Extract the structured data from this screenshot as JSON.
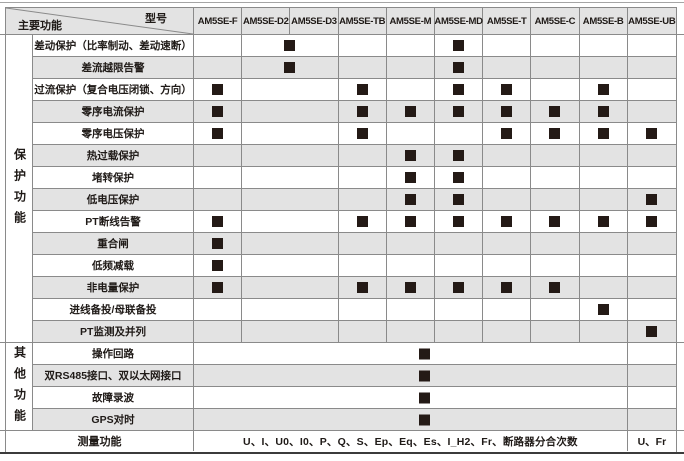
{
  "table": {
    "corner": {
      "model_label": "型号",
      "function_label": "主要功能"
    },
    "columns": [
      "AM5SE-F",
      "AM5SE-D2",
      "AM5SE-D3",
      "AM5SE-TB",
      "AM5SE-M",
      "AM5SE-MD",
      "AM5SE-T",
      "AM5SE-C",
      "AM5SE-B",
      "AM5SE-UB"
    ],
    "sections": [
      {
        "label": "保护功能",
        "rows": [
          {
            "label": "差动保护（比率制动、差动速断）",
            "marks": [
              "D2D3",
              "MD"
            ]
          },
          {
            "label": "差流越限告警",
            "marks": [
              "D2D3",
              "MD"
            ]
          },
          {
            "label": "过流保护（复合电压闭锁、方向）",
            "marks": [
              "F",
              "TB",
              "MD",
              "T",
              "B"
            ]
          },
          {
            "label": "零序电流保护",
            "marks": [
              "F",
              "TB",
              "M",
              "MD",
              "T",
              "C",
              "B"
            ]
          },
          {
            "label": "零序电压保护",
            "marks": [
              "F",
              "TB",
              "T",
              "C",
              "B",
              "UB"
            ]
          },
          {
            "label": "热过载保护",
            "marks": [
              "M",
              "MD"
            ]
          },
          {
            "label": "堵转保护",
            "marks": [
              "M",
              "MD"
            ]
          },
          {
            "label": "低电压保护",
            "marks": [
              "M",
              "MD",
              "UB"
            ]
          },
          {
            "label": "PT断线告警",
            "marks": [
              "F",
              "TB",
              "M",
              "MD",
              "T",
              "C",
              "B",
              "UB"
            ]
          },
          {
            "label": "重合闸",
            "marks": [
              "F"
            ]
          },
          {
            "label": "低频减载",
            "marks": [
              "F"
            ]
          },
          {
            "label": "非电量保护",
            "marks": [
              "F",
              "TB",
              "M",
              "MD",
              "T",
              "C"
            ]
          },
          {
            "label": "进线备投/母联备投",
            "marks": [
              "B"
            ]
          },
          {
            "label": "PT监测及并列",
            "marks": [
              "UB"
            ]
          }
        ]
      },
      {
        "label": "其他功能",
        "rows": [
          {
            "label": "操作回路",
            "marked": true
          },
          {
            "label": "双RS485接口、双以太网接口",
            "marked": true
          },
          {
            "label": "故障录波",
            "marked": true
          },
          {
            "label": "GPS对时",
            "marked": true
          }
        ]
      }
    ],
    "measurement": {
      "label": "测量功能",
      "values": "U、I、U0、I0、P、Q、S、Ep、Eq、Es、I_H2、Fr、断路器分合次数",
      "ub_value": "U、Fr"
    }
  },
  "colors": {
    "grid": "#8a8a8a",
    "row_alt": "#e3e3e3",
    "square": "#241a16",
    "bottom_rule": "#3b3b3b"
  }
}
